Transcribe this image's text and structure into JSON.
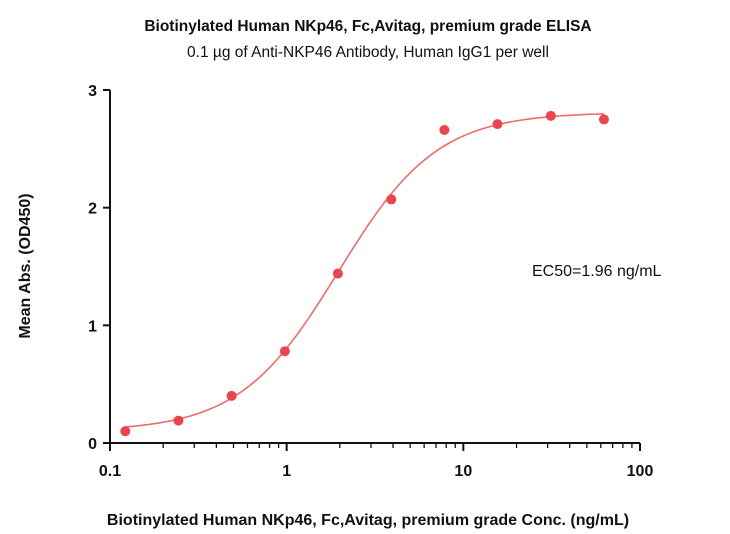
{
  "chart_data": {
    "type": "scatter",
    "title": "Biotinylated Human NKp46, Fc,Avitag, premium grade ELISA",
    "subtitle": "0.1 µg of Anti-NKP46 Antibody, Human IgG1 per well",
    "xlabel": "Biotinylated Human NKp46, Fc,Avitag, premium grade Conc. (ng/mL)",
    "ylabel": "Mean Abs. (OD450)",
    "xscale": "log",
    "xlim": [
      0.1,
      100
    ],
    "ylim": [
      0,
      3
    ],
    "x_ticks": [
      0.1,
      1,
      10,
      100
    ],
    "x_tick_labels": [
      "0.1",
      "1",
      "10",
      "100"
    ],
    "y_ticks": [
      0,
      1,
      2,
      3
    ],
    "y_tick_labels": [
      "0",
      "1",
      "2",
      "3"
    ],
    "grid": false,
    "annotation": "EC50=1.96 ng/mL",
    "marker_color": "#e8454c",
    "curve_color": "#f06a6a",
    "series": [
      {
        "x": [
          0.122,
          0.244,
          0.488,
          0.977,
          1.95,
          3.91,
          7.81,
          15.6,
          31.3,
          62.5
        ],
        "y": [
          0.1,
          0.19,
          0.4,
          0.78,
          1.44,
          2.07,
          2.66,
          2.71,
          2.78,
          2.75
        ]
      }
    ],
    "fit": {
      "model": "4PL",
      "bottom": 0.1,
      "top": 2.81,
      "ec50": 1.96,
      "hill": 1.55
    }
  }
}
